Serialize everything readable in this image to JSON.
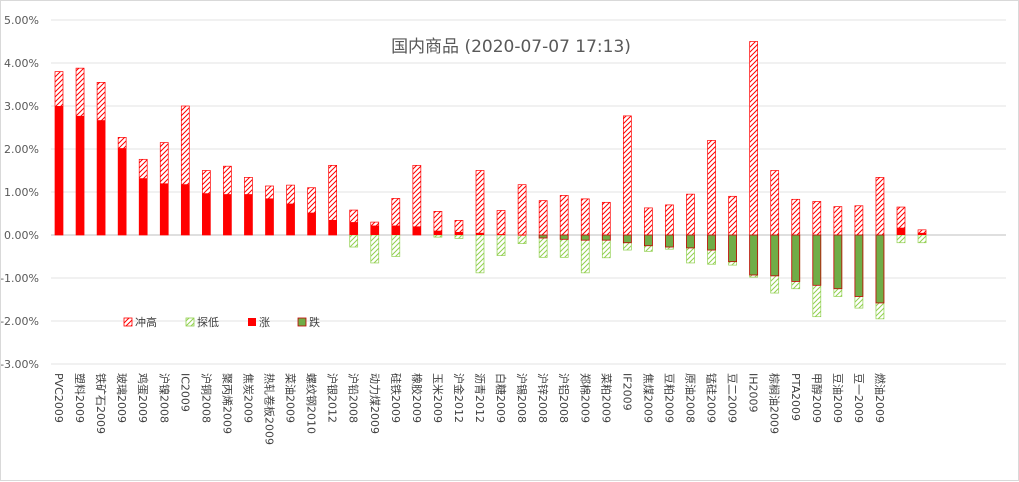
{
  "chart_data": {
    "type": "bar",
    "title": "国内商品 (2020-07-07 17:13)",
    "xlabel": "",
    "ylabel": "",
    "ylim": [
      -3,
      5
    ],
    "yticks": [
      "-3.00%",
      "-2.00%",
      "-1.00%",
      "0.00%",
      "1.00%",
      "2.00%",
      "3.00%",
      "4.00%",
      "5.00%"
    ],
    "grid": true,
    "legend_position": "bottom-left",
    "categories": [
      "PVC2009",
      "塑料2009",
      "铁矿石2009",
      "玻璃2009",
      "鸡蛋2009",
      "沪镍2008",
      "IC2009",
      "沪铜2008",
      "聚丙烯2009",
      "焦炭2009",
      "热轧卷板2009",
      "菜油2009",
      "螺纹钢2010",
      "沪银2012",
      "沪铅2008",
      "动力煤2009",
      "硅铁2009",
      "橡胶2009",
      "玉米2009",
      "沪金2012",
      "沥青2012",
      "白糖2009",
      "沪锡2008",
      "沪锌2008",
      "沪铝2008",
      "郑棉2009",
      "菜粕2009",
      "IF2009",
      "焦煤2009",
      "豆粕2009",
      "原油2008",
      "锰硅2009",
      "豆二2009",
      "IH2009",
      "棕榈油2009",
      "PTA2009",
      "甲醇2009",
      "豆油2009",
      "豆一2009",
      "燃油2009",
      "",
      ""
    ],
    "series": [
      {
        "name": "冲高",
        "values": [
          3.8,
          3.88,
          3.55,
          2.27,
          1.76,
          2.15,
          3.0,
          1.5,
          1.6,
          1.34,
          1.14,
          1.16,
          1.1,
          1.62,
          0.58,
          0.3,
          0.85,
          1.62,
          0.55,
          0.34,
          1.5,
          0.57,
          1.17,
          0.8,
          0.92,
          0.84,
          0.76,
          2.77,
          0.63,
          0.7,
          0.95,
          2.2,
          0.9,
          4.5,
          1.5,
          0.83,
          0.78,
          0.66,
          0.68,
          1.34,
          0.65,
          0.12
        ]
      },
      {
        "name": "探低",
        "values": [
          0,
          0,
          0,
          0,
          0,
          0,
          0,
          0,
          0,
          0,
          0,
          0,
          0,
          0,
          -0.28,
          -0.65,
          -0.5,
          0,
          -0.05,
          -0.08,
          -0.88,
          -0.48,
          -0.2,
          -0.52,
          -0.52,
          -0.88,
          -0.53,
          -0.35,
          -0.38,
          -0.33,
          -0.65,
          -0.68,
          -0.7,
          -0.98,
          -1.35,
          -1.25,
          -1.9,
          -1.43,
          -1.7,
          -1.95,
          -0.18,
          -0.18
        ]
      },
      {
        "name": "涨",
        "values": [
          3.0,
          2.77,
          2.67,
          2.02,
          1.32,
          1.2,
          1.18,
          0.97,
          0.95,
          0.95,
          0.85,
          0.73,
          0.52,
          0.35,
          0.3,
          0.22,
          0.22,
          0.2,
          0.1,
          0.07,
          0.05,
          0.02,
          0.01,
          0,
          0,
          0,
          0,
          0,
          0,
          0,
          0,
          0,
          0,
          0,
          0,
          0,
          0,
          0,
          0,
          0,
          0.17,
          0.05
        ]
      },
      {
        "name": "跌",
        "values": [
          0,
          0,
          0,
          0,
          0,
          0,
          0,
          0,
          0,
          0,
          0,
          0,
          0,
          0,
          0,
          0,
          0,
          0,
          0,
          0,
          0,
          0,
          0,
          -0.07,
          -0.1,
          -0.12,
          -0.12,
          -0.18,
          -0.25,
          -0.28,
          -0.3,
          -0.35,
          -0.62,
          -0.93,
          -0.95,
          -1.08,
          -1.17,
          -1.25,
          -1.43,
          -1.58,
          0,
          0
        ]
      }
    ],
    "colors": {
      "冲高": "#ff0000",
      "探低": "#92d050",
      "涨": "#ff0000",
      "跌": "#70ad47",
      "跌_border": "#c00000"
    }
  }
}
